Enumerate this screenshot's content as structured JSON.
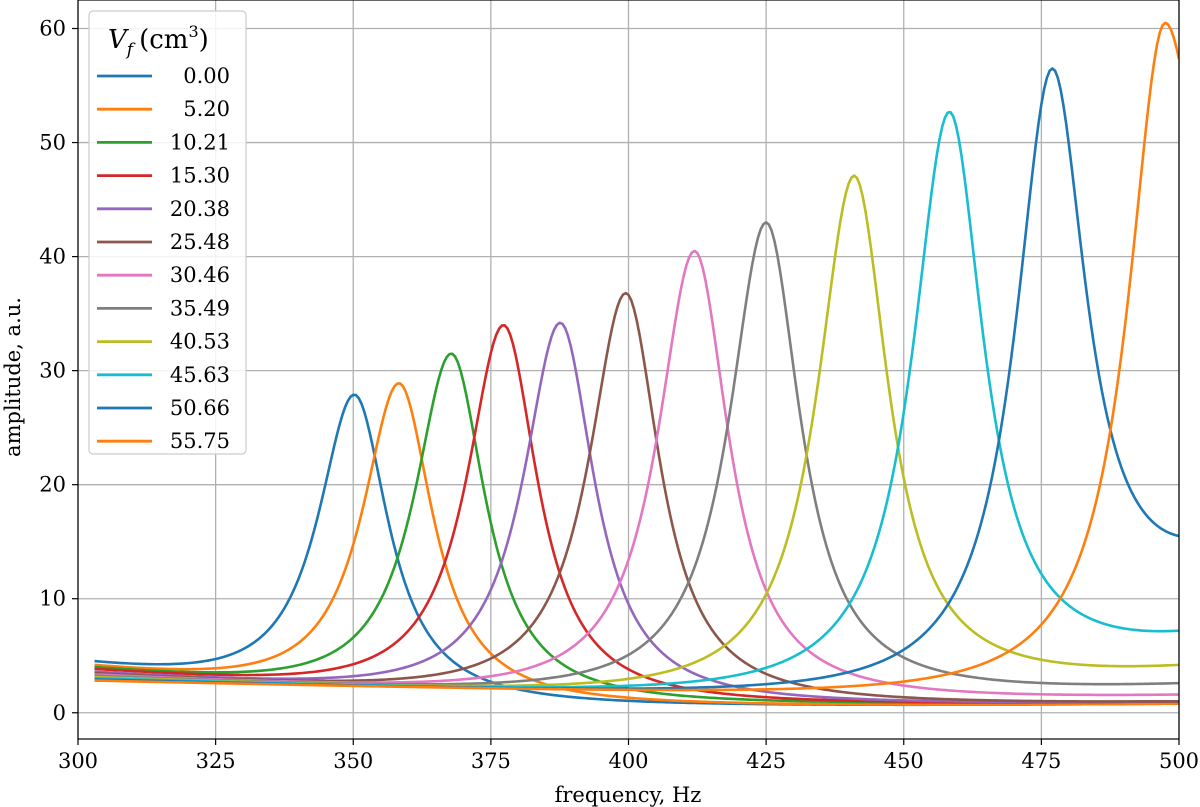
{
  "chart_data": {
    "type": "line",
    "title": "",
    "xlabel": "frequency, Hz",
    "ylabel": "amplitude, a.u.",
    "xlim": [
      300,
      500
    ],
    "ylim": [
      -2.3,
      62.5
    ],
    "xticks": [
      300,
      325,
      350,
      375,
      400,
      425,
      450,
      475,
      500
    ],
    "yticks": [
      0,
      10,
      20,
      30,
      40,
      50,
      60
    ],
    "x_start": 303,
    "grid": true,
    "legend": {
      "title_main": "V",
      "title_sub": "f",
      "title_unit": "(cm",
      "title_sup": "3",
      "title_close": ")",
      "placement": "top-left"
    },
    "series": [
      {
        "name": "0.00",
        "color": "#1f77b4",
        "peak_x": 350.2,
        "peak_y": 27.9,
        "base_y": 4.5,
        "tail_y": 0.8
      },
      {
        "name": "5.20",
        "color": "#ff7f0e",
        "peak_x": 358.3,
        "peak_y": 28.9,
        "base_y": 4.3,
        "tail_y": 0.8
      },
      {
        "name": "10.21",
        "color": "#2ca02c",
        "peak_x": 367.8,
        "peak_y": 31.5,
        "base_y": 4.2,
        "tail_y": 1.0
      },
      {
        "name": "15.30",
        "color": "#d62728",
        "peak_x": 377.3,
        "peak_y": 34.0,
        "base_y": 4.1,
        "tail_y": 1.0
      },
      {
        "name": "20.38",
        "color": "#9467bd",
        "peak_x": 387.6,
        "peak_y": 34.2,
        "base_y": 3.9,
        "tail_y": 1.0
      },
      {
        "name": "25.48",
        "color": "#8c564b",
        "peak_x": 399.5,
        "peak_y": 36.8,
        "base_y": 3.8,
        "tail_y": 1.0
      },
      {
        "name": "30.46",
        "color": "#e377c2",
        "peak_x": 412.0,
        "peak_y": 40.5,
        "base_y": 3.7,
        "tail_y": 1.6
      },
      {
        "name": "35.49",
        "color": "#7f7f7f",
        "peak_x": 425.0,
        "peak_y": 43.0,
        "base_y": 3.6,
        "tail_y": 2.6
      },
      {
        "name": "40.53",
        "color": "#bcbd22",
        "peak_x": 441.0,
        "peak_y": 47.1,
        "base_y": 3.5,
        "tail_y": 4.2
      },
      {
        "name": "45.63",
        "color": "#17becf",
        "peak_x": 458.3,
        "peak_y": 52.7,
        "base_y": 3.4,
        "tail_y": 7.2
      },
      {
        "name": "50.66",
        "color": "#1f77b4",
        "peak_x": 477.0,
        "peak_y": 56.5,
        "base_y": 3.3,
        "tail_y": 15.5
      },
      {
        "name": "55.75",
        "color": "#ff7f0e",
        "peak_x": 497.5,
        "peak_y": 60.5,
        "base_y": 3.2,
        "tail_y": 57.5
      }
    ]
  }
}
